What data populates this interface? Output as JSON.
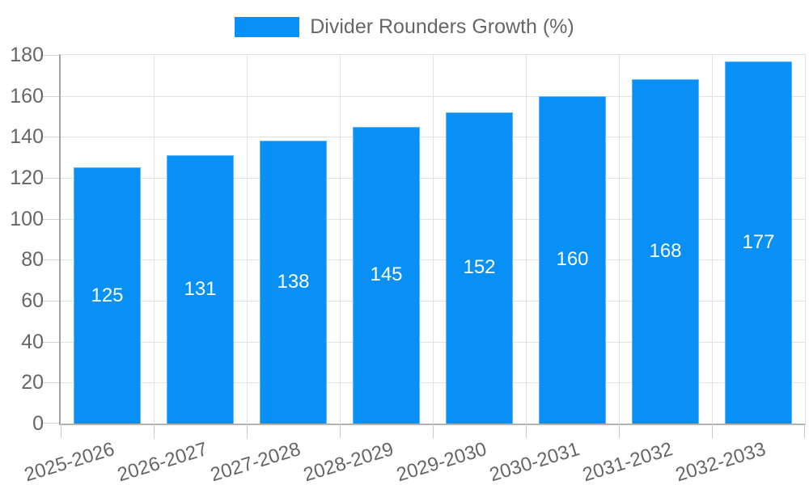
{
  "legend": {
    "label": "Divider Rounders Growth (%)"
  },
  "chart_data": {
    "type": "bar",
    "title": "",
    "categories": [
      "2025-2026",
      "2026-2027",
      "2027-2028",
      "2028-2029",
      "2029-2030",
      "2030-2031",
      "2031-2032",
      "2032-2033"
    ],
    "series": [
      {
        "name": "Divider Rounders Growth (%)",
        "values": [
          125,
          131,
          138,
          145,
          152,
          160,
          168,
          177
        ]
      }
    ],
    "xlabel": "",
    "ylabel": "",
    "ylim": [
      0,
      180
    ],
    "ytick_step": 20,
    "grid": true,
    "legend_position": "top-center",
    "x_label_rotation_deg": -17,
    "value_labels": "inside-center",
    "colors": {
      "bar": "#0890f4",
      "bar_edge": "#5fb2f5",
      "value_label": "#ffffff",
      "axis_text": "#666666",
      "gridline": "#e2e2e2",
      "y_axis_line": "#a3a3a3",
      "x_axis_line": "#b2b2b2",
      "background": "#ffffff"
    }
  }
}
